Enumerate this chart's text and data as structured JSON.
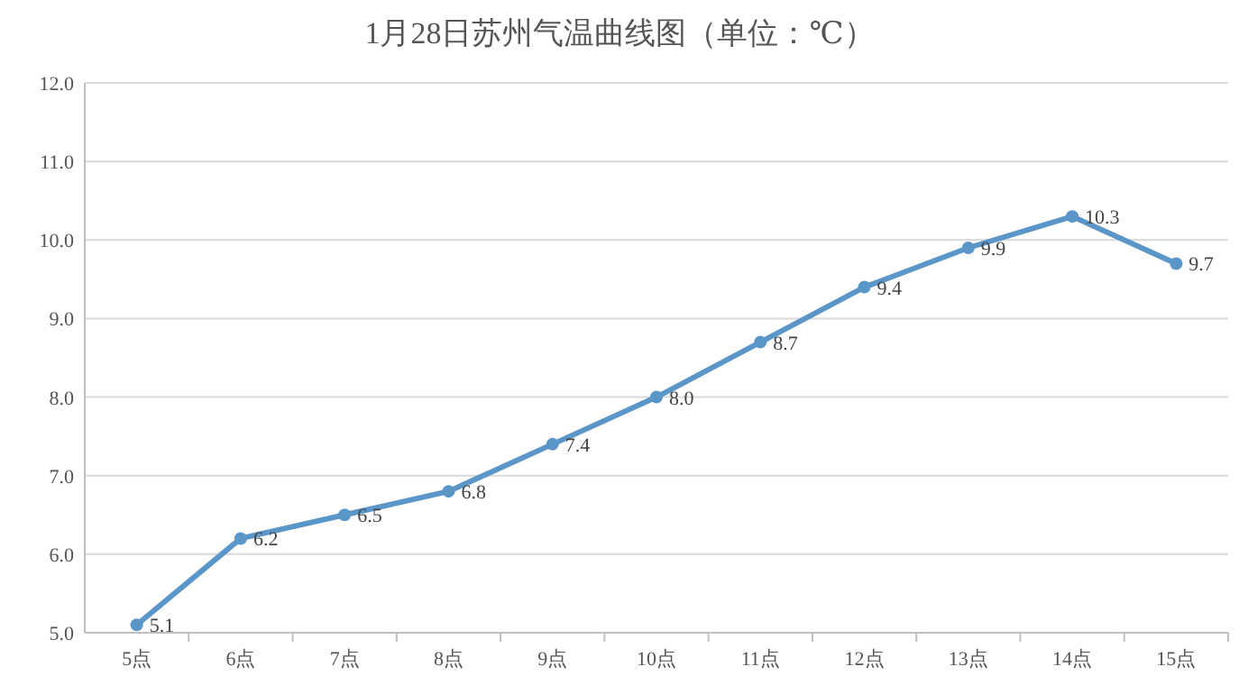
{
  "chart_data": {
    "type": "line",
    "title": "1月28日苏州气温曲线图（单位：℃）",
    "categories": [
      "5点",
      "6点",
      "7点",
      "8点",
      "9点",
      "10点",
      "11点",
      "12点",
      "13点",
      "14点",
      "15点"
    ],
    "series": [
      {
        "color": "#5b96c8",
        "values": [
          5.1,
          6.2,
          6.5,
          6.8,
          7.4,
          8.0,
          8.7,
          9.4,
          9.9,
          10.3,
          9.7
        ],
        "value_labels": [
          "5.1",
          "6.2",
          "6.5",
          "6.8",
          "7.4",
          "8.0",
          "8.7",
          "9.4",
          "9.9",
          "10.3",
          "9.7"
        ]
      }
    ],
    "ylim": [
      5,
      12
    ],
    "yticks": [
      {
        "value": 5,
        "label": "5.0"
      },
      {
        "value": 6,
        "label": "6.0"
      },
      {
        "value": 7,
        "label": "7.0"
      },
      {
        "value": 8,
        "label": "8.0"
      },
      {
        "value": 9,
        "label": "9.0"
      },
      {
        "value": 10,
        "label": "10.0"
      },
      {
        "value": 11,
        "label": "11.0"
      },
      {
        "value": 12,
        "label": "12.0"
      }
    ],
    "grid": "y",
    "marker": "circle",
    "line_style": "solid"
  }
}
